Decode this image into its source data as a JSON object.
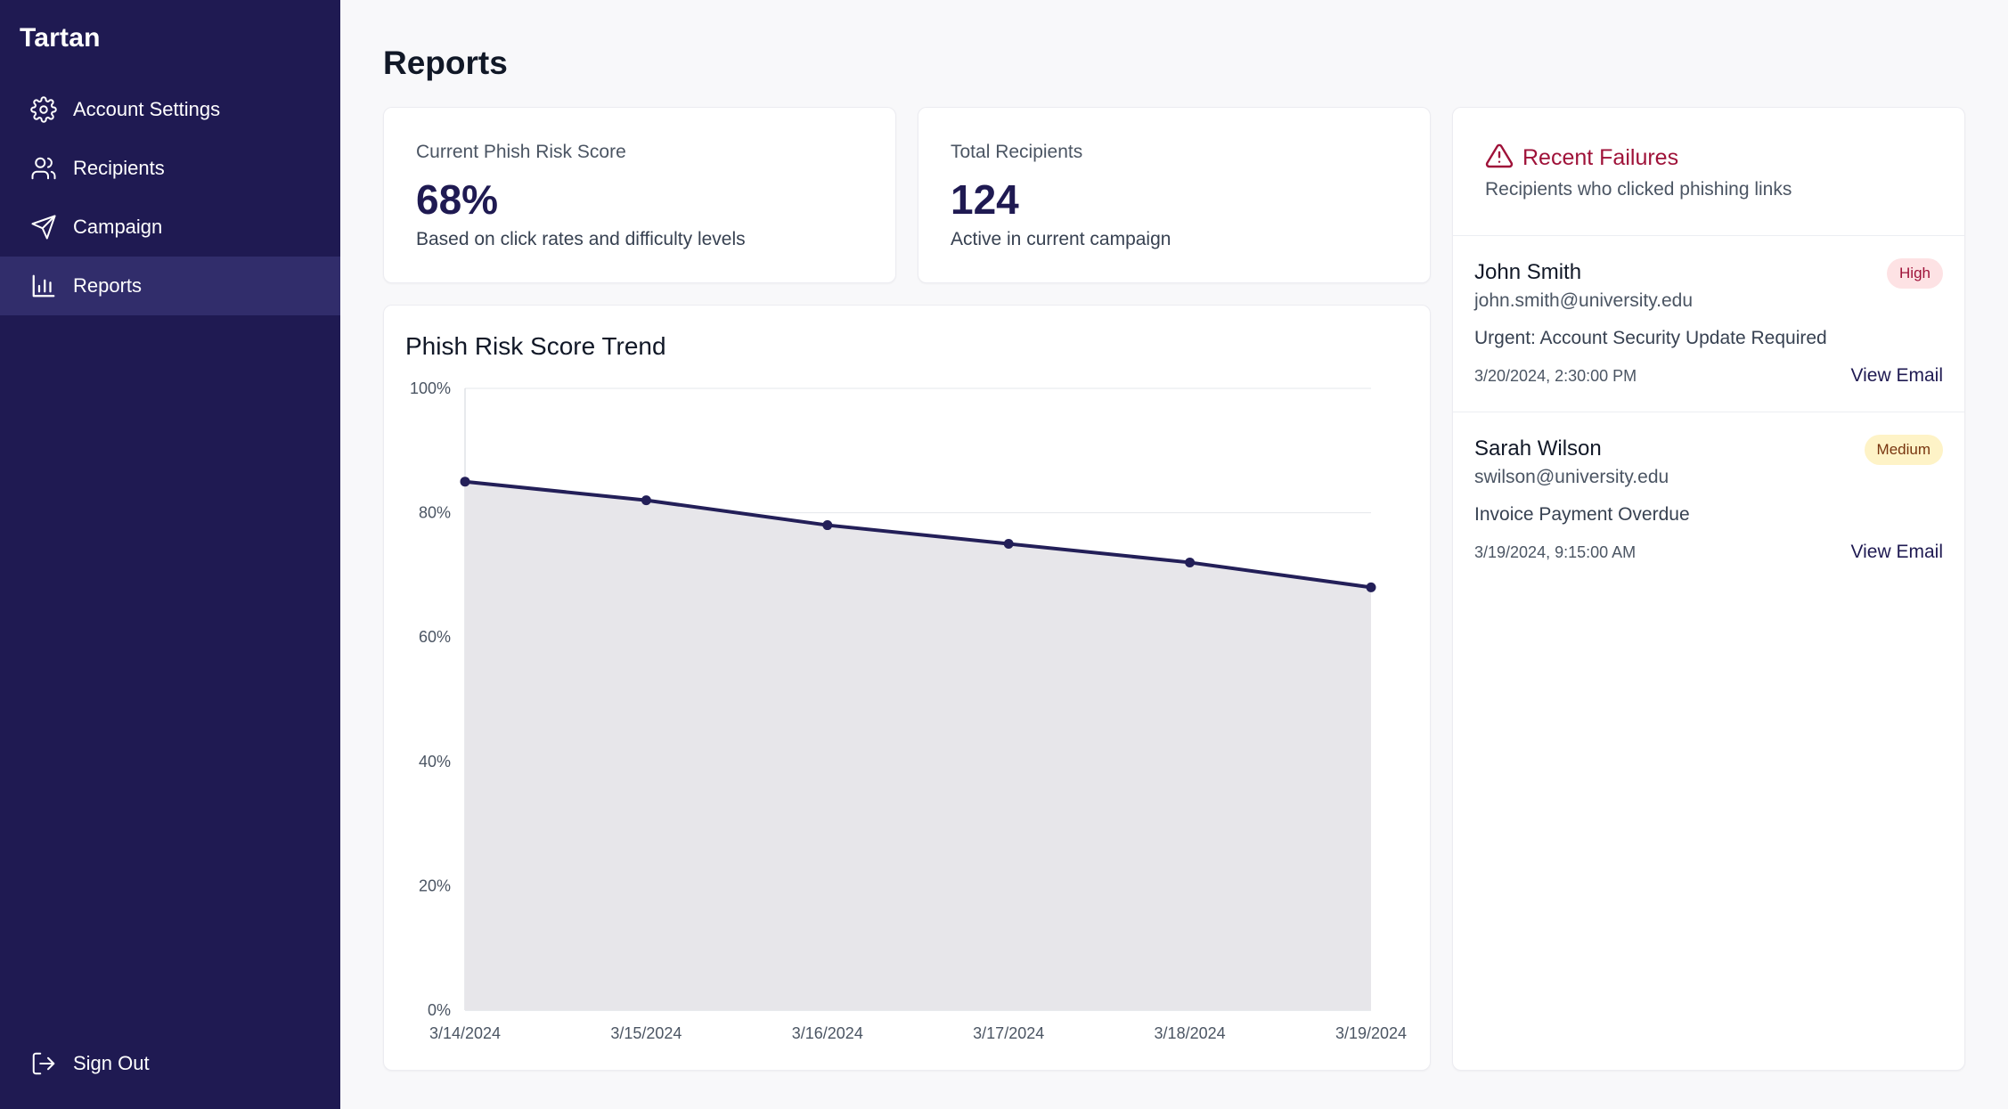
{
  "app": {
    "name": "Tartan"
  },
  "sidebar": {
    "items": [
      {
        "label": "Account Settings",
        "icon": "gear-icon"
      },
      {
        "label": "Recipients",
        "icon": "users-icon"
      },
      {
        "label": "Campaign",
        "icon": "send-icon"
      },
      {
        "label": "Reports",
        "icon": "bar-chart-icon",
        "active": true
      }
    ],
    "signout": {
      "label": "Sign Out",
      "icon": "sign-out-icon"
    }
  },
  "page": {
    "title": "Reports"
  },
  "stats": {
    "risk": {
      "label": "Current Phish Risk Score",
      "value": "68%",
      "sub": "Based on click rates and difficulty levels"
    },
    "recipients": {
      "label": "Total Recipients",
      "value": "124",
      "sub": "Active in current campaign"
    }
  },
  "chart": {
    "title": "Phish Risk Score Trend"
  },
  "chart_data": {
    "type": "area",
    "title": "Phish Risk Score Trend",
    "x": [
      "3/14/2024",
      "3/15/2024",
      "3/16/2024",
      "3/17/2024",
      "3/18/2024",
      "3/19/2024"
    ],
    "series": [
      {
        "name": "Phish Risk Score",
        "values": [
          85,
          82,
          78,
          75,
          72,
          68
        ]
      }
    ],
    "ylim": [
      0,
      100
    ],
    "yticks": [
      "0%",
      "20%",
      "40%",
      "60%",
      "80%",
      "100%"
    ],
    "ytick_values": [
      0,
      20,
      40,
      60,
      80,
      100
    ],
    "grid": true,
    "colors": {
      "line": "#231f58",
      "fill": "#e7e6ea",
      "grid": "#e5e7eb"
    }
  },
  "failures": {
    "title": "Recent Failures",
    "subtitle": "Recipients who clicked phishing links",
    "items": [
      {
        "name": "John Smith",
        "email": "john.smith@university.edu",
        "subject": "Urgent: Account Security Update Required",
        "time": "3/20/2024, 2:30:00 PM",
        "severity": "High",
        "action": "View Email"
      },
      {
        "name": "Sarah Wilson",
        "email": "swilson@university.edu",
        "subject": "Invoice Payment Overdue",
        "time": "3/19/2024, 9:15:00 AM",
        "severity": "Medium",
        "action": "View Email"
      }
    ]
  }
}
